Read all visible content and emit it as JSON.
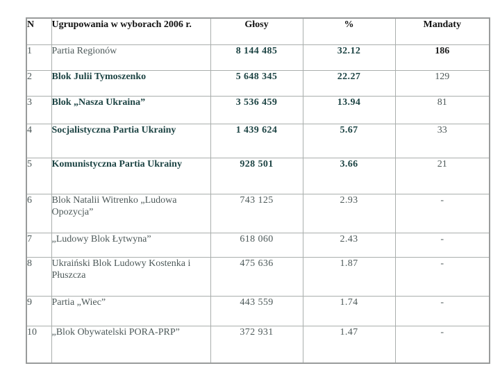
{
  "table": {
    "columns": {
      "n": "N",
      "party": "Ugrupowania w wyborach 2006 r.",
      "votes": "Głosy",
      "pct": "%",
      "mandates": "Mandaty"
    },
    "rows": [
      {
        "n": "1",
        "party": "Partia Regionów",
        "votes": "8 144 485",
        "pct": "32.12",
        "mandates": "186"
      },
      {
        "n": "2",
        "party": "Blok Julii Tymoszenko",
        "votes": "5 648 345",
        "pct": "22.27",
        "mandates": "129"
      },
      {
        "n": "3",
        "party": "Blok „Nasza Ukraina”",
        "votes": "3 536 459",
        "pct": "13.94",
        "mandates": "81"
      },
      {
        "n": "4",
        "party": "Socjalistyczna Partia Ukrainy",
        "votes": "1 439 624",
        "pct": "5.67",
        "mandates": "33"
      },
      {
        "n": "5",
        "party": "Komunistyczna Partia Ukrainy",
        "votes": "928 501",
        "pct": "3.66",
        "mandates": "21"
      },
      {
        "n": "6",
        "party": "Blok Natalii Witrenko „Ludowa Opozycja”",
        "votes": "743 125",
        "pct": "2.93",
        "mandates": "-"
      },
      {
        "n": "7",
        "party": "„Ludowy Blok Łytwyna”",
        "votes": "618 060",
        "pct": "2.43",
        "mandates": "-"
      },
      {
        "n": "8",
        "party": "Ukraiński Blok Ludowy Kostenka i Płuszcza",
        "votes": "475 636",
        "pct": "1.87",
        "mandates": "-"
      },
      {
        "n": "9",
        "party": "Partia „Wiec”",
        "votes": "443 559",
        "pct": "1.74",
        "mandates": "-"
      },
      {
        "n": "10",
        "party": "„Blok Obywatelski PORA-PRP”",
        "votes": "372 931",
        "pct": "1.47",
        "mandates": "-"
      }
    ]
  },
  "colors": {
    "accent_teal": "#1d4444",
    "text_regular": "#4c5858",
    "header_text": "#121212",
    "border": "#a9aeac",
    "outer_border": "#999b9b"
  }
}
